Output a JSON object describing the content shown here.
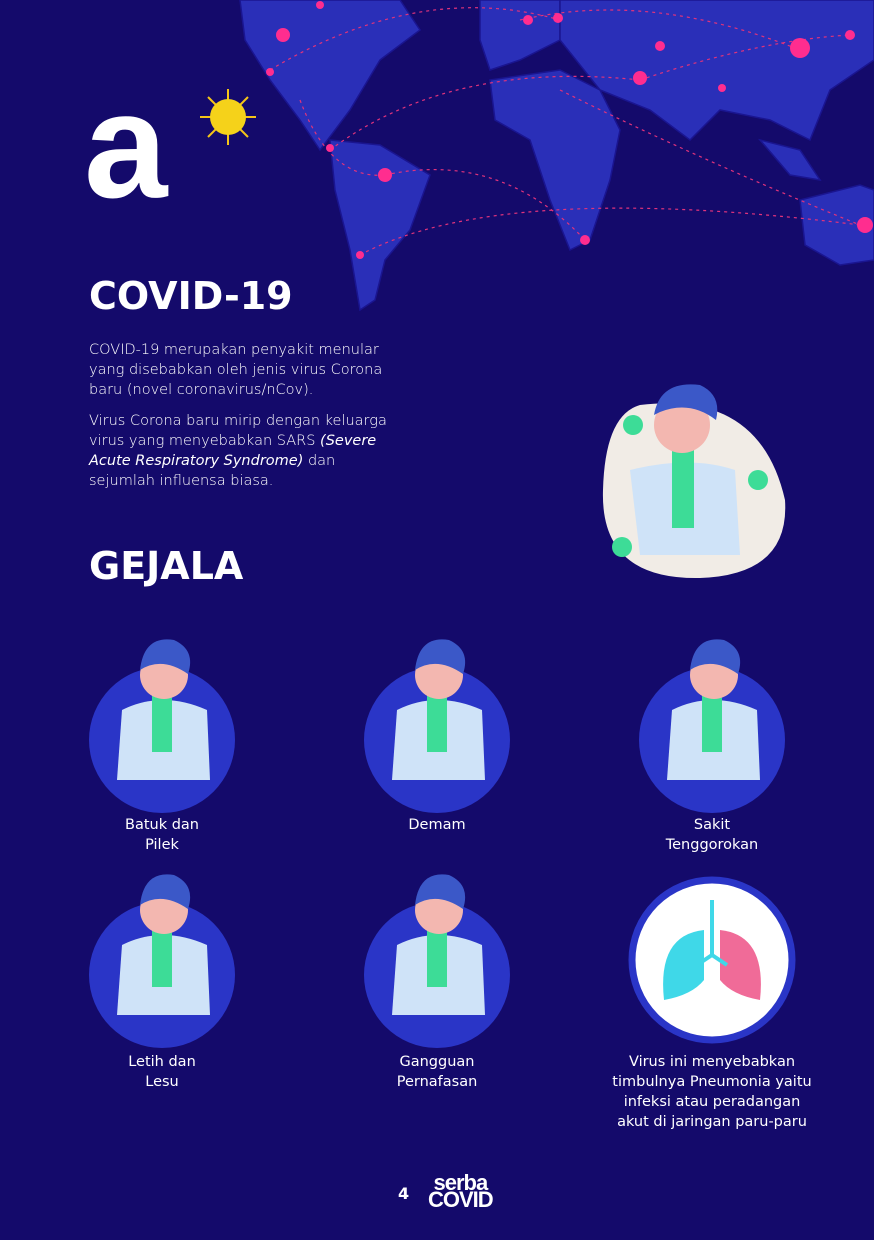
{
  "header": {
    "letter": "a",
    "title": "COVID-19",
    "paragraphs": [
      {
        "segments": [
          {
            "text": "COVID-19 merupakan penyakit menular yang disebabkan oleh jenis virus Corona baru (novel coronavirus/nCov)."
          }
        ]
      },
      {
        "segments": [
          {
            "text": "Virus Corona baru mirip dengan keluarga virus yang menyebabkan SARS "
          },
          {
            "text": "(Severe Acute Respiratory Syndrome)",
            "italic": true
          },
          {
            "text": " dan sejumlah influensa biasa."
          }
        ]
      }
    ]
  },
  "section_title": "GEJALA",
  "symptoms": [
    {
      "lines": [
        "Batuk dan",
        "Pilek"
      ]
    },
    {
      "lines": [
        "Demam"
      ]
    },
    {
      "lines": [
        "Sakit",
        "Tenggorokan"
      ]
    },
    {
      "lines": [
        "Letih dan",
        "Lesu"
      ]
    },
    {
      "lines": [
        "Gangguan",
        "Pernafasan"
      ]
    },
    {
      "lines": [
        "Virus ini menyebabkan",
        "timbulnya Pneumonia yaitu",
        "infeksi atau peradangan",
        "akut di jaringan paru-paru"
      ]
    }
  ],
  "footer": {
    "page_number": "4",
    "logo": [
      "serba",
      "COVID"
    ]
  }
}
